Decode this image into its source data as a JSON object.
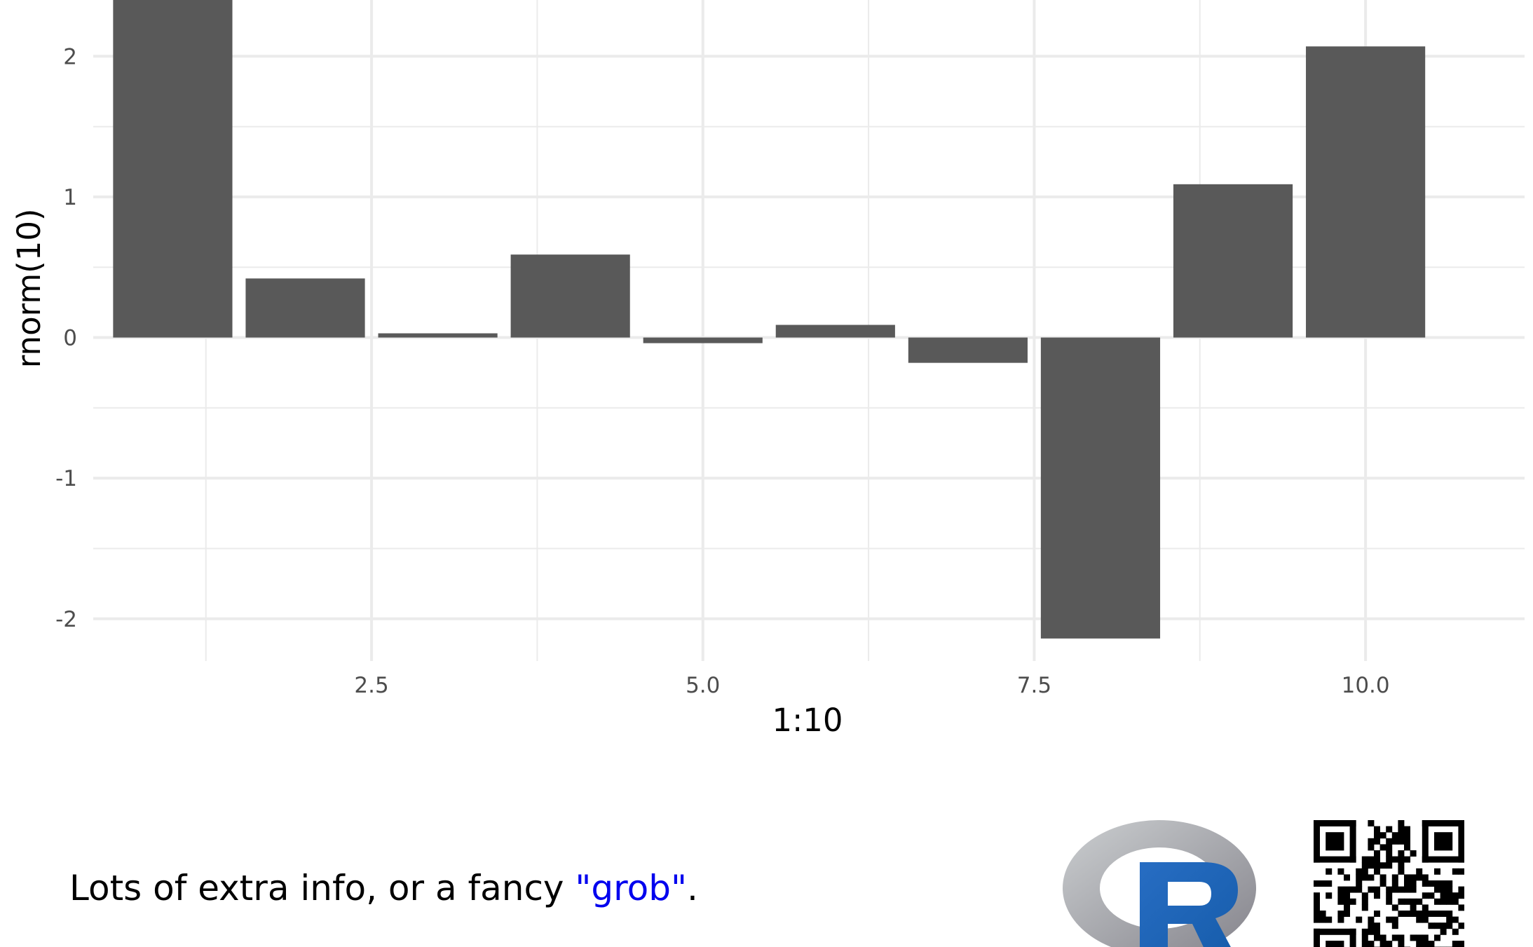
{
  "chart_data": {
    "type": "bar",
    "x": [
      1,
      2,
      3,
      4,
      5,
      6,
      7,
      8,
      9,
      10
    ],
    "values": [
      2.45,
      0.42,
      0.03,
      0.59,
      -0.04,
      0.09,
      -0.18,
      -2.14,
      1.09,
      2.07
    ],
    "xlabel": "1:10",
    "ylabel": "rnorm(10)",
    "xlim": [
      0.4,
      11.2
    ],
    "ylim": [
      -2.3,
      2.4
    ],
    "x_ticks": [
      2.5,
      5.0,
      7.5,
      10.0
    ],
    "x_tick_labels": [
      "2.5",
      "5.0",
      "7.5",
      "10.0"
    ],
    "y_ticks": [
      2,
      1,
      0,
      -1,
      -2
    ],
    "y_tick_labels": [
      "2",
      "1",
      "0",
      "-1",
      "-2"
    ],
    "bar_color": "#595959",
    "grid": true,
    "grid_color": "#ebebeb",
    "legend": "none"
  },
  "footer": {
    "text_before": "Lots of extra info, or a fancy ",
    "highlight": "\"grob\"",
    "text_after": ".",
    "highlight_color": "#0000ee"
  },
  "logos": {
    "r_logo_icon": "r-logo-icon",
    "qr_code_icon": "qr-code-icon"
  }
}
